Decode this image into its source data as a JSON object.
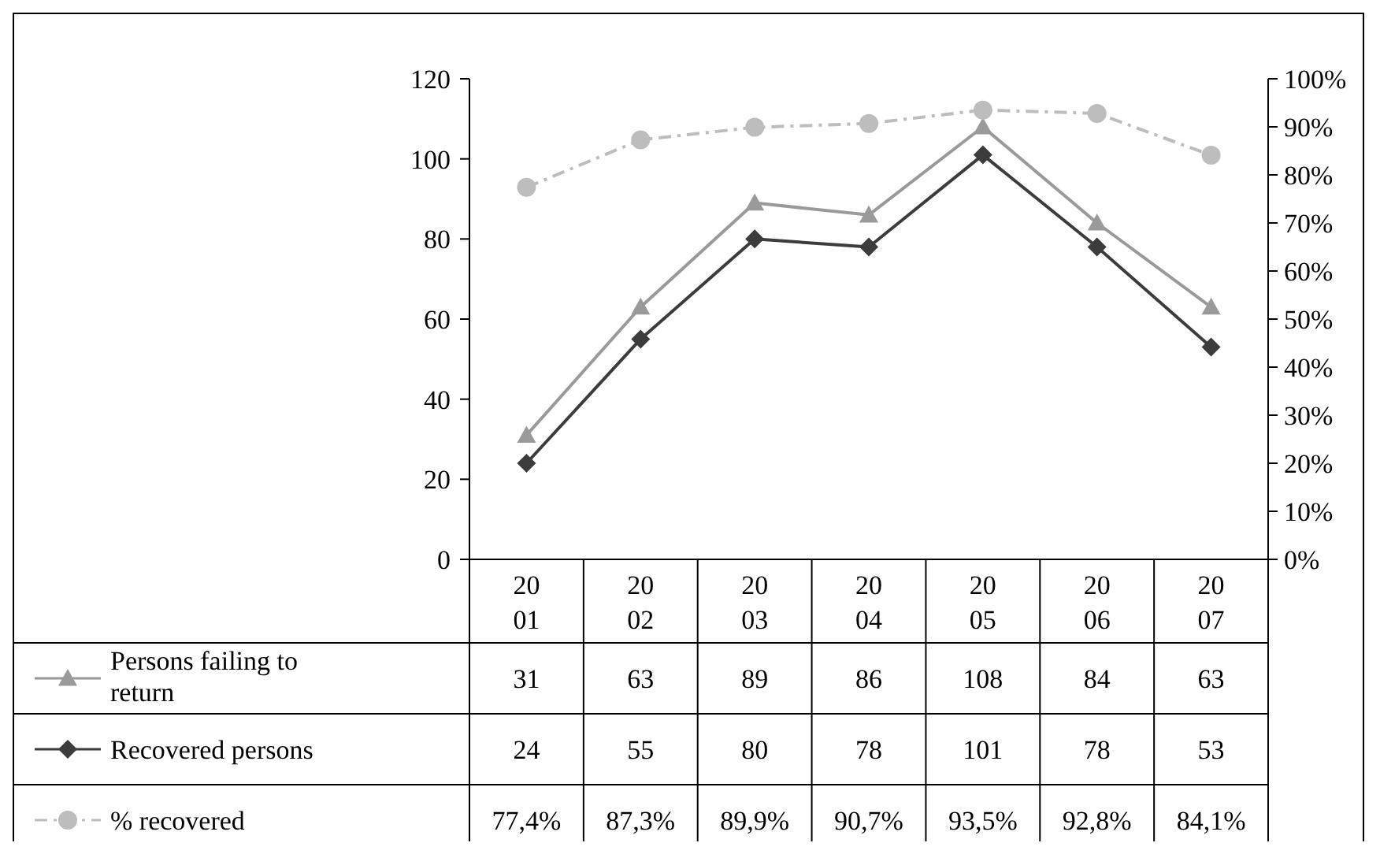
{
  "chart_data": {
    "type": "line",
    "categories": [
      "2001",
      "2002",
      "2003",
      "2004",
      "2005",
      "2006",
      "2007"
    ],
    "series": [
      {
        "name": "Persons failing to return",
        "color": "#9a9a9a",
        "marker": "triangle",
        "line_style": "solid",
        "values": [
          31,
          63,
          89,
          86,
          108,
          84,
          63
        ],
        "value_labels": [
          "31",
          "63",
          "89",
          "86",
          "108",
          "84",
          "63"
        ]
      },
      {
        "name": "Recovered persons",
        "color": "#3c3c3c",
        "marker": "diamond",
        "line_style": "solid",
        "values": [
          24,
          55,
          80,
          78,
          101,
          78,
          53
        ],
        "value_labels": [
          "24",
          "55",
          "80",
          "78",
          "101",
          "78",
          "53"
        ]
      },
      {
        "name": "% recovered",
        "color": "#bdbdbd",
        "marker": "circle",
        "line_style": "dashed",
        "axis": "y2",
        "values": [
          77.4,
          87.3,
          89.9,
          90.7,
          93.5,
          92.8,
          84.1
        ],
        "value_labels": [
          "77,4%",
          "87,3%",
          "89,9%",
          "90,7%",
          "93,5%",
          "92,8%",
          "84,1%"
        ]
      }
    ],
    "ylim": [
      0,
      120
    ],
    "yticks": [
      0,
      20,
      40,
      60,
      80,
      100,
      120
    ],
    "y2lim": [
      0,
      100
    ],
    "y2ticks": [
      {
        "value": 0,
        "label": "0%"
      },
      {
        "value": 10,
        "label": "10%"
      },
      {
        "value": 20,
        "label": "20%"
      },
      {
        "value": 30,
        "label": "30%"
      },
      {
        "value": 40,
        "label": "40%"
      },
      {
        "value": 50,
        "label": "50%"
      },
      {
        "value": 60,
        "label": "60%"
      },
      {
        "value": 70,
        "label": "70%"
      },
      {
        "value": 80,
        "label": "80%"
      },
      {
        "value": 90,
        "label": "90%"
      },
      {
        "value": 100,
        "label": "100%"
      }
    ],
    "grid": false,
    "legend": "bottom"
  }
}
